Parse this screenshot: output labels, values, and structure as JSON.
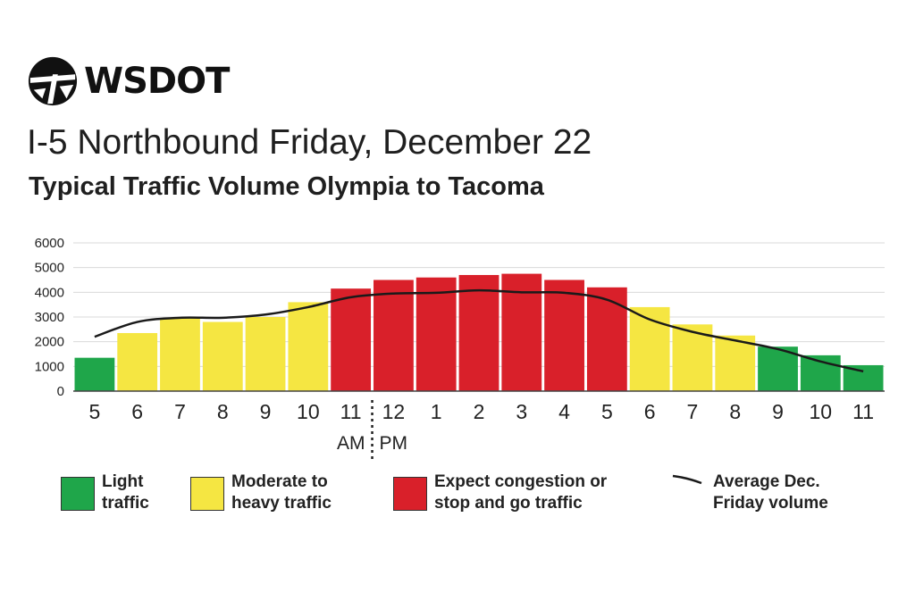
{
  "logo": {
    "text": "WSDOT"
  },
  "title": "I-5 Northbound Friday, December 22",
  "subtitle": "Typical Traffic Volume Olympia to Tacoma",
  "colors": {
    "light": "#1fa64a",
    "moderate": "#f5e642",
    "congestion": "#d9202a",
    "line": "#1a1a1a",
    "grid": "#d9d9d9"
  },
  "chart_data": {
    "type": "bar",
    "categories": [
      "5",
      "6",
      "7",
      "8",
      "9",
      "10",
      "11",
      "12",
      "1",
      "2",
      "3",
      "4",
      "5",
      "6",
      "7",
      "8",
      "9",
      "10",
      "11"
    ],
    "values": [
      1350,
      2350,
      2950,
      2800,
      3000,
      3600,
      4150,
      4500,
      4600,
      4700,
      4750,
      4500,
      4200,
      3400,
      2700,
      2250,
      1800,
      1450,
      1050
    ],
    "levels": [
      "light",
      "moderate",
      "moderate",
      "moderate",
      "moderate",
      "moderate",
      "congestion",
      "congestion",
      "congestion",
      "congestion",
      "congestion",
      "congestion",
      "congestion",
      "moderate",
      "moderate",
      "moderate",
      "light",
      "light",
      "light"
    ],
    "line_series": {
      "name": "Average Dec. Friday volume",
      "values": [
        2200,
        2800,
        2970,
        2970,
        3100,
        3400,
        3800,
        3950,
        3980,
        4080,
        4000,
        3980,
        3700,
        2900,
        2400,
        2050,
        1700,
        1200,
        800
      ]
    },
    "ylim": [
      0,
      6000
    ],
    "yticks": [
      "0",
      "1000",
      "2000",
      "3000",
      "4000",
      "5000",
      "6000"
    ],
    "ampm": {
      "am": "AM",
      "pm": "PM"
    },
    "grid": true
  },
  "legend": {
    "light": [
      "Light",
      "traffic"
    ],
    "moderate": [
      "Moderate to",
      "heavy traffic"
    ],
    "congestion": [
      "Expect congestion or",
      "stop and go traffic"
    ],
    "average": [
      "Average Dec.",
      "Friday volume"
    ]
  }
}
